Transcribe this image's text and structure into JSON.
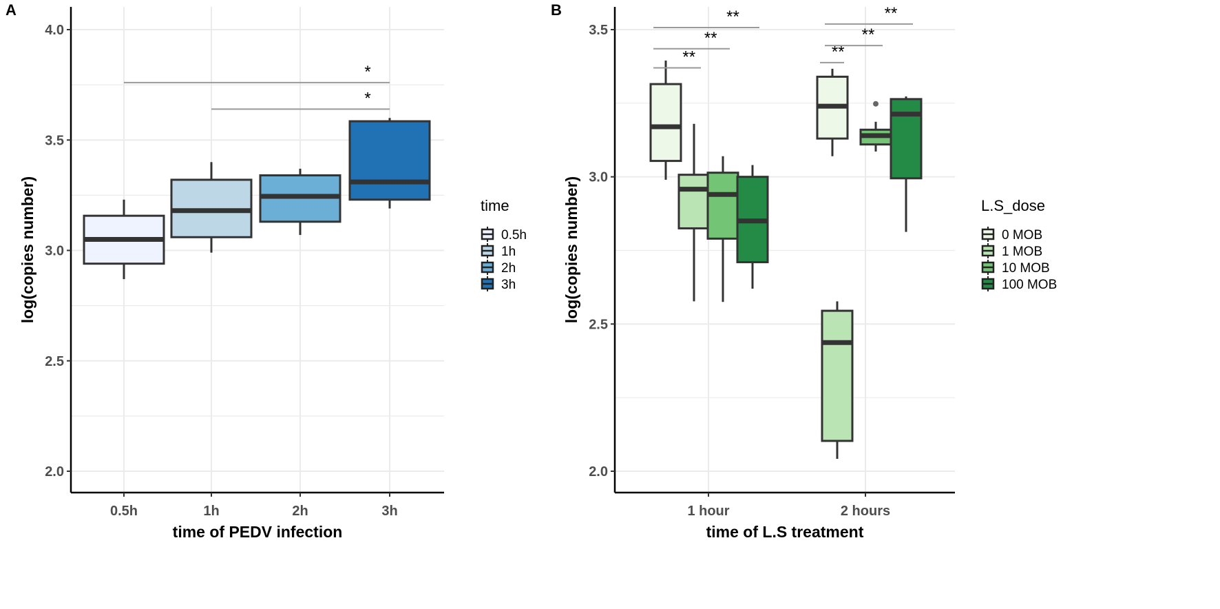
{
  "chart_data": [
    {
      "type": "box",
      "panel_label": "A",
      "xlabel": "time of PEDV infection",
      "ylabel": "log(copies number)",
      "ylim": [
        1.9,
        4.1
      ],
      "yticks": [
        "2.0",
        "2.5",
        "3.0",
        "3.5",
        "4.0"
      ],
      "categories": [
        "0.5h",
        "1h",
        "2h",
        "3h"
      ],
      "legend": {
        "title": "time",
        "position": "right",
        "entries": [
          "0.5h",
          "1h",
          "2h",
          "3h"
        ]
      },
      "colors": [
        "#eff3ff",
        "#bdd7e7",
        "#6baed6",
        "#2171b5"
      ],
      "boxes": [
        {
          "category": "0.5h",
          "group": "0.5h",
          "min": 2.87,
          "q1": 2.94,
          "median": 3.05,
          "q3": 3.157,
          "max": 3.23
        },
        {
          "category": "1h",
          "group": "1h",
          "min": 2.99,
          "q1": 3.06,
          "median": 3.18,
          "q3": 3.32,
          "max": 3.4
        },
        {
          "category": "2h",
          "group": "2h",
          "min": 3.07,
          "q1": 3.13,
          "median": 3.245,
          "q3": 3.34,
          "max": 3.37
        },
        {
          "category": "3h",
          "group": "3h",
          "min": 3.19,
          "q1": 3.23,
          "median": 3.31,
          "q3": 3.585,
          "max": 3.6
        }
      ],
      "significance": [
        {
          "from": "0.5h",
          "to": "3h",
          "y": 3.76,
          "label": "*"
        },
        {
          "from": "1h",
          "to": "3h",
          "y": 3.64,
          "label": "*"
        }
      ]
    },
    {
      "type": "box",
      "panel_label": "B",
      "xlabel": "time of L.S treatment",
      "ylabel": "log(copies number)",
      "ylim": [
        1.93,
        3.62
      ],
      "yticks": [
        "2.0",
        "2.5",
        "3.0",
        "3.5"
      ],
      "categories": [
        "1 hour",
        "2 hours"
      ],
      "legend": {
        "title": "L.S_dose",
        "position": "right",
        "entries": [
          "0 MOB",
          "1 MOB",
          "10 MOB",
          "100 MOB"
        ]
      },
      "colors": [
        "#edf8e9",
        "#bae4b3",
        "#74c476",
        "#238b45"
      ],
      "boxes": [
        {
          "category": "1 hour",
          "group": "0 MOB",
          "min": 2.99,
          "q1": 3.054,
          "median": 3.17,
          "q3": 3.315,
          "max": 3.395
        },
        {
          "category": "1 hour",
          "group": "1 MOB",
          "min": 2.577,
          "q1": 2.825,
          "median": 2.958,
          "q3": 3.007,
          "max": 3.18
        },
        {
          "category": "1 hour",
          "group": "10 MOB",
          "min": 2.575,
          "q1": 2.79,
          "median": 2.94,
          "q3": 3.014,
          "max": 3.07
        },
        {
          "category": "1 hour",
          "group": "100 MOB",
          "min": 2.62,
          "q1": 2.71,
          "median": 2.85,
          "q3": 3.0,
          "max": 3.04
        },
        {
          "category": "2 hours",
          "group": "0 MOB",
          "min": 3.07,
          "q1": 3.13,
          "median": 3.24,
          "q3": 3.34,
          "max": 3.367
        },
        {
          "category": "2 hours",
          "group": "1 MOB",
          "min": 2.042,
          "q1": 2.103,
          "median": 2.437,
          "q3": 2.545,
          "max": 2.577
        },
        {
          "category": "2 hours",
          "group": "10 MOB",
          "min": 3.086,
          "q1": 3.11,
          "median": 3.14,
          "q3": 3.16,
          "max": 3.187,
          "outliers": [
            3.248
          ]
        },
        {
          "category": "2 hours",
          "group": "100 MOB",
          "min": 2.813,
          "q1": 2.995,
          "median": 3.213,
          "q3": 3.264,
          "max": 3.273
        }
      ],
      "significance": [
        {
          "category": "1 hour",
          "from": "0 MOB",
          "to": "1 MOB",
          "y": 3.37,
          "label": "**"
        },
        {
          "category": "1 hour",
          "from": "0 MOB",
          "to": "10 MOB",
          "y": 3.435,
          "label": "**"
        },
        {
          "category": "1 hour",
          "from": "0 MOB",
          "to": "100 MOB",
          "y": 3.507,
          "label": "**"
        },
        {
          "category": "2 hours",
          "from": "0 MOB",
          "to": "1 MOB",
          "y": 3.388,
          "label": "**"
        },
        {
          "category": "2 hours",
          "from": "1 MOB",
          "to": "10 MOB",
          "y": 3.446,
          "label": "**"
        },
        {
          "category": "2 hours",
          "from": "1 MOB",
          "to": "100 MOB",
          "y": 3.519,
          "label": "**"
        }
      ]
    }
  ]
}
